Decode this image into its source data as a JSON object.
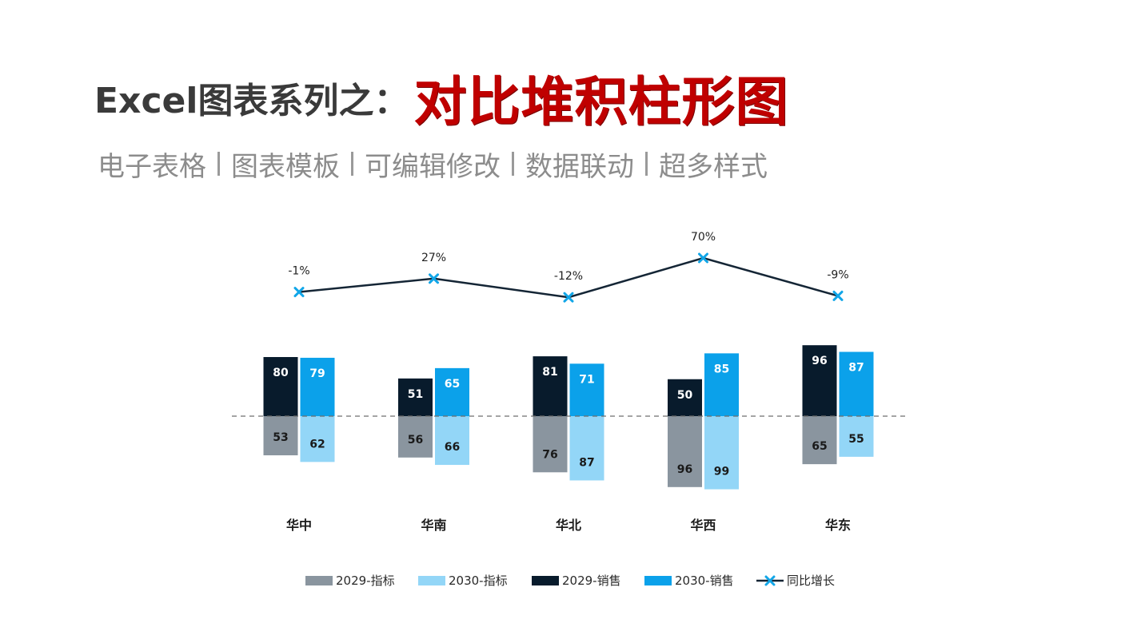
{
  "header": {
    "title_prefix": "Excel图表系列之：",
    "title_main": "对比堆积柱形图",
    "subtitle_items": [
      "电子表格",
      "图表模板",
      "可编辑修改",
      "数据联动",
      "超多样式"
    ]
  },
  "chart_data": {
    "type": "bar",
    "stacking": "diverging",
    "categories": [
      "华中",
      "华南",
      "华北",
      "华西",
      "华东"
    ],
    "series": [
      {
        "name": "2029-指标",
        "values": [
          53,
          56,
          76,
          96,
          65
        ],
        "color": "#8a959f",
        "direction": "down",
        "label_color": "#1a1a1a"
      },
      {
        "name": "2030-指标",
        "values": [
          62,
          66,
          87,
          99,
          55
        ],
        "color": "#93d6f7",
        "direction": "down",
        "label_color": "#1a1a1a"
      },
      {
        "name": "2029-销售",
        "values": [
          80,
          51,
          81,
          50,
          96
        ],
        "color": "#081b2c",
        "direction": "up",
        "label_color": "#ffffff"
      },
      {
        "name": "2030-销售",
        "values": [
          79,
          65,
          71,
          85,
          87
        ],
        "color": "#0ba1ea",
        "direction": "up",
        "label_color": "#ffffff"
      }
    ],
    "growth": {
      "name": "同比增长",
      "values": [
        -1,
        27,
        -12,
        70,
        -9
      ],
      "labels": [
        "-1%",
        "27%",
        "-12%",
        "70%",
        "-9%"
      ],
      "line_color": "#142535",
      "marker_color": "#11a6e8"
    },
    "baseline_dashed": true,
    "legend_position": "bottom"
  }
}
